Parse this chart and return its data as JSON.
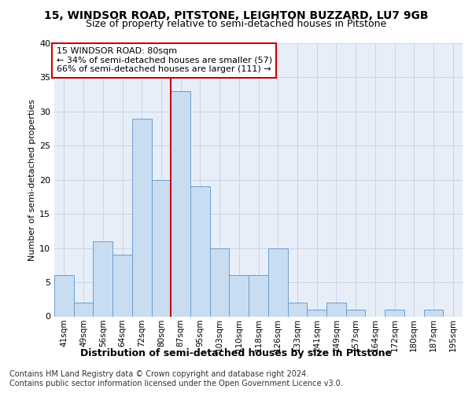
{
  "title1": "15, WINDSOR ROAD, PITSTONE, LEIGHTON BUZZARD, LU7 9GB",
  "title2": "Size of property relative to semi-detached houses in Pitstone",
  "xlabel": "Distribution of semi-detached houses by size in Pitstone",
  "ylabel": "Number of semi-detached properties",
  "footnote1": "Contains HM Land Registry data © Crown copyright and database right 2024.",
  "footnote2": "Contains public sector information licensed under the Open Government Licence v3.0.",
  "categories": [
    "41sqm",
    "49sqm",
    "56sqm",
    "64sqm",
    "72sqm",
    "80sqm",
    "87sqm",
    "95sqm",
    "103sqm",
    "110sqm",
    "118sqm",
    "126sqm",
    "133sqm",
    "141sqm",
    "149sqm",
    "157sqm",
    "164sqm",
    "172sqm",
    "180sqm",
    "187sqm",
    "195sqm"
  ],
  "values": [
    6,
    2,
    11,
    9,
    29,
    20,
    33,
    19,
    10,
    6,
    6,
    10,
    2,
    1,
    2,
    1,
    0,
    1,
    0,
    1,
    0
  ],
  "bar_color": "#c9ddf2",
  "bar_edge_color": "#6a9dcc",
  "annotation_box_text_line1": "15 WINDSOR ROAD: 80sqm",
  "annotation_box_text_line2": "← 34% of semi-detached houses are smaller (57)",
  "annotation_box_text_line3": "66% of semi-detached houses are larger (111) →",
  "annotation_box_color": "#ffffff",
  "annotation_box_edge": "#cc0000",
  "vline_color": "#cc0000",
  "vline_x_index": 5,
  "ylim": [
    0,
    40
  ],
  "yticks": [
    0,
    5,
    10,
    15,
    20,
    25,
    30,
    35,
    40
  ],
  "grid_color": "#c8d4e8",
  "background_color": "#e8eef8",
  "title1_fontsize": 10,
  "title2_fontsize": 9,
  "ylabel_fontsize": 8,
  "xlabel_fontsize": 9,
  "footnote_fontsize": 7
}
